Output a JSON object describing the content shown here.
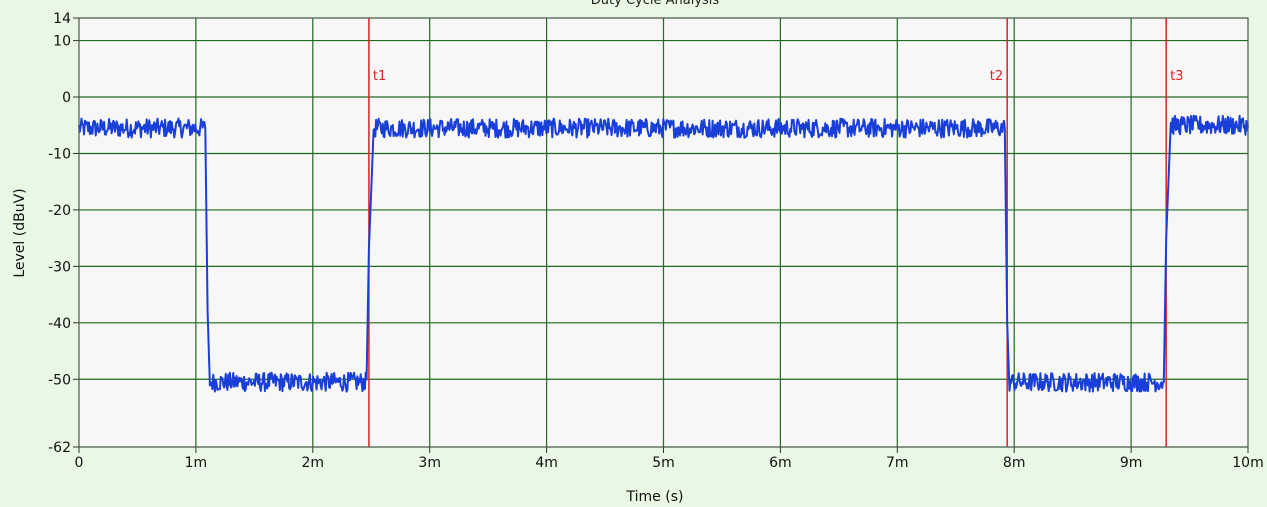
{
  "chart_data": {
    "type": "line",
    "title": "Duty Cycle Analysis",
    "xlabel": "Time (s)",
    "ylabel": "Level (dBuV)",
    "xlim": [
      0,
      10
    ],
    "ylim": [
      -62,
      14
    ],
    "grid": true,
    "x_ticks": [
      0,
      1,
      2,
      3,
      4,
      5,
      6,
      7,
      8,
      9,
      10
    ],
    "x_tick_labels": [
      "0",
      "1m",
      "2m",
      "3m",
      "4m",
      "5m",
      "6m",
      "7m",
      "8m",
      "9m",
      "10m"
    ],
    "y_ticks": [
      14,
      10,
      0,
      -10,
      -20,
      -30,
      -40,
      -50,
      -62
    ],
    "y_tick_labels": [
      "14",
      "10",
      "0",
      "-10",
      "-20",
      "-30",
      "-40",
      "-50",
      "-62"
    ],
    "background_color": "#f7f7f7",
    "grid_color": "#1f6b1f",
    "series": [
      {
        "color": "#1a3fd8",
        "x": [
          0,
          1.08,
          1.1,
          1.12,
          2.46,
          2.48,
          2.52,
          7.92,
          7.94,
          7.96,
          9.28,
          9.3,
          9.34,
          10
        ],
        "y": [
          -5.5,
          -5.5,
          -38,
          -50.5,
          -50,
          -27,
          -5.5,
          -5.5,
          -40,
          -50.5,
          -50.5,
          -25,
          -5,
          -5
        ]
      }
    ],
    "markers": [
      {
        "label": "t1",
        "x": 2.48,
        "color": "#e02020"
      },
      {
        "label": "t2",
        "x": 7.94,
        "color": "#e02020"
      },
      {
        "label": "t3",
        "x": 9.3,
        "color": "#e02020"
      }
    ]
  }
}
